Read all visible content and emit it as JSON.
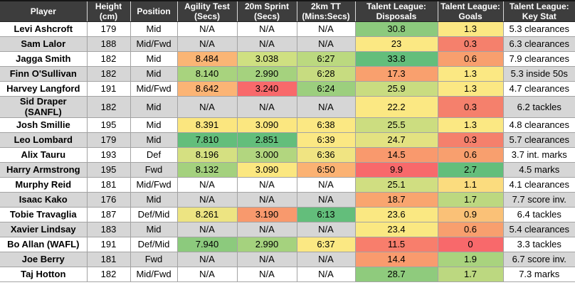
{
  "chart_data": {
    "type": "table",
    "columns": [
      "Player",
      "Height (cm)",
      "Position",
      "Agility Test (Secs)",
      "20m Sprint (Secs)",
      "2km TT (Mins:Secs)",
      "Talent League: Disposals",
      "Talent League: Goals",
      "Talent League: Key Stat"
    ],
    "rows": [
      [
        "Levi Ashcroft",
        "179",
        "Mid",
        "N/A",
        "N/A",
        "N/A",
        "30.8",
        "1.3",
        "5.3 clearances"
      ],
      [
        "Sam Lalor",
        "188",
        "Mid/Fwd",
        "N/A",
        "N/A",
        "N/A",
        "23",
        "0.3",
        "6.3 clearances"
      ],
      [
        "Jagga Smith",
        "182",
        "Mid",
        "8.484",
        "3.038",
        "6:27",
        "33.8",
        "0.6",
        "7.9 clearances"
      ],
      [
        "Finn O'Sullivan",
        "182",
        "Mid",
        "8.140",
        "2.990",
        "6:28",
        "17.3",
        "1.3",
        "5.3 inside 50s"
      ],
      [
        "Harvey Langford",
        "191",
        "Mid/Fwd",
        "8.642",
        "3.240",
        "6:24",
        "25.9",
        "1.3",
        "4.7 clearances"
      ],
      [
        "Sid Draper (SANFL)",
        "182",
        "Mid",
        "N/A",
        "N/A",
        "N/A",
        "22.2",
        "0.3",
        "6.2 tackles"
      ],
      [
        "Josh Smillie",
        "195",
        "Mid",
        "8.391",
        "3.090",
        "6:38",
        "25.5",
        "1.3",
        "4.8 clearances"
      ],
      [
        "Leo Lombard",
        "179",
        "Mid",
        "7.810",
        "2.851",
        "6:39",
        "24.7",
        "0.3",
        "5.7 clearances"
      ],
      [
        "Alix Tauru",
        "193",
        "Def",
        "8.196",
        "3.000",
        "6:36",
        "14.5",
        "0.6",
        "3.7 int. marks"
      ],
      [
        "Harry Armstrong",
        "195",
        "Fwd",
        "8.132",
        "3.090",
        "6:50",
        "9.9",
        "2.7",
        "4.5 marks"
      ],
      [
        "Murphy Reid",
        "181",
        "Mid/Fwd",
        "N/A",
        "N/A",
        "N/A",
        "25.1",
        "1.1",
        "4.1 clearances"
      ],
      [
        "Isaac Kako",
        "176",
        "Mid",
        "N/A",
        "N/A",
        "N/A",
        "18.7",
        "1.7",
        "7.7 score inv."
      ],
      [
        "Tobie Travaglia",
        "187",
        "Def/Mid",
        "8.261",
        "3.190",
        "6:13",
        "23.6",
        "0.9",
        "6.4 tackles"
      ],
      [
        "Xavier Lindsay",
        "183",
        "Mid",
        "N/A",
        "N/A",
        "N/A",
        "23.4",
        "0.6",
        "5.4 clearances"
      ],
      [
        "Bo Allan (WAFL)",
        "191",
        "Def/Mid",
        "7.940",
        "2.990",
        "6:37",
        "11.5",
        "0",
        "3.3 tackles"
      ],
      [
        "Joe Berry",
        "181",
        "Fwd",
        "N/A",
        "N/A",
        "N/A",
        "14.4",
        "1.9",
        "6.7 score inv."
      ],
      [
        "Taj Hotton",
        "182",
        "Mid/Fwd",
        "N/A",
        "N/A",
        "N/A",
        "28.7",
        "1.7",
        "7.3 marks"
      ]
    ],
    "cell_backgrounds": [
      [
        null,
        null,
        null,
        null,
        null,
        null,
        "#8CCA7D",
        "#FBE883",
        null
      ],
      [
        null,
        null,
        null,
        null,
        null,
        null,
        "#FBE883",
        "#F5806C",
        null
      ],
      [
        null,
        null,
        null,
        "#FAB575",
        "#CFE081",
        "#BBD97F",
        "#63BE7B",
        "#F89F6E",
        null
      ],
      [
        null,
        null,
        null,
        "#A8D37E",
        "#A5D27E",
        "#C7DC80",
        "#F9A06E",
        "#FBE883",
        null
      ],
      [
        null,
        null,
        null,
        "#FBB475",
        "#F8696B",
        "#9CCF7E",
        "#C9DC80",
        "#FBE883",
        null
      ],
      [
        null,
        null,
        null,
        null,
        null,
        null,
        "#FBE883",
        "#F5806C",
        null
      ],
      [
        null,
        null,
        null,
        "#FBE67F",
        "#FBE780",
        "#FBE883",
        "#CCDD80",
        "#FBE883",
        null
      ],
      [
        null,
        null,
        null,
        "#63BE7B",
        "#63BE7B",
        "#FBE883",
        "#E3E281",
        "#F5806C",
        null
      ],
      [
        null,
        null,
        null,
        "#D5E081",
        "#B2D67F",
        "#F0E482",
        "#F9996D",
        "#F89F6E",
        null
      ],
      [
        null,
        null,
        null,
        "#A4D17E",
        "#FBE780",
        "#FBB273",
        "#F8696B",
        "#63BE7B",
        null
      ],
      [
        null,
        null,
        null,
        null,
        null,
        null,
        "#D0DE81",
        "#FBDC7E",
        null
      ],
      [
        null,
        null,
        null,
        null,
        null,
        null,
        "#F9A56F",
        "#BCD880",
        null
      ],
      [
        null,
        null,
        null,
        "#EDE482",
        "#F8996D",
        "#63BE7B",
        "#FAE882",
        "#FAC177",
        null
      ],
      [
        null,
        null,
        null,
        null,
        null,
        null,
        "#FAE882",
        "#F89F6E",
        null
      ],
      [
        null,
        null,
        null,
        "#8CCA7D",
        "#A5D27E",
        "#FBE883",
        "#F87E6C",
        "#F8696B",
        null
      ],
      [
        null,
        null,
        null,
        null,
        null,
        null,
        "#F99B6E",
        "#A9D37E",
        null
      ],
      [
        null,
        null,
        null,
        null,
        null,
        null,
        "#8FCB7D",
        "#BCD880",
        null
      ]
    ],
    "conditional_format_scale": {
      "low": "#F8696B",
      "mid": "#FFEB84",
      "high": "#63BE7B"
    },
    "legend_position": "none",
    "grid": true
  },
  "colors": {
    "header_bg": "#3D3D3D",
    "header_text": "#FFFFFF",
    "row_even_bg": "#FFFFFF",
    "row_odd_bg": "#D6D6D6",
    "gridline": "#A3A3A3"
  }
}
